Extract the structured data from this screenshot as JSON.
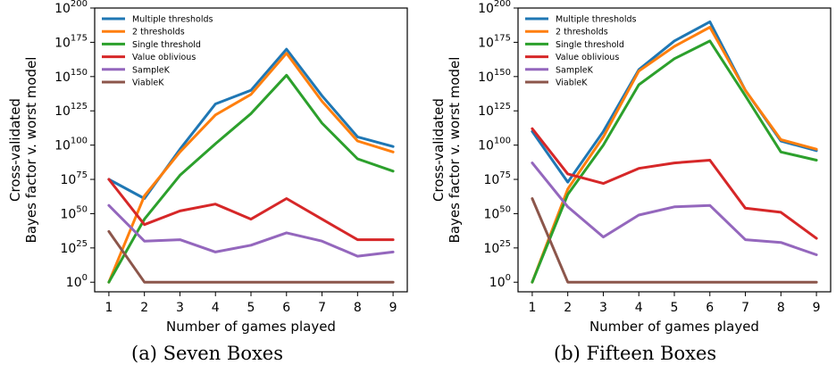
{
  "figure": {
    "series_colors": {
      "Multiple thresholds": "#1f77b4",
      "2 thresholds": "#ff7f0e",
      "Single threshold": "#2ca02c",
      "Value oblivious": "#d62728",
      "SampleK": "#9467bd",
      "ViableK": "#8c564b"
    }
  },
  "chart_data": [
    {
      "type": "line",
      "caption": "(a) Seven Boxes",
      "xlabel": "Number of games played",
      "ylabel_lines": [
        "Cross-validated",
        "Bayes factor v. worst model"
      ],
      "x": [
        1,
        2,
        3,
        4,
        5,
        6,
        7,
        8,
        9
      ],
      "xlim": [
        0.6,
        9.4
      ],
      "y_scale": "log10",
      "ylim_exponent": [
        -7,
        200
      ],
      "y_ticks": [
        {
          "base": "10",
          "exp": "0",
          "value_exp": 0
        },
        {
          "base": "10",
          "exp": "25",
          "value_exp": 25
        },
        {
          "base": "10",
          "exp": "50",
          "value_exp": 50
        },
        {
          "base": "10",
          "exp": "75",
          "value_exp": 75
        },
        {
          "base": "10",
          "exp": "100",
          "value_exp": 100
        },
        {
          "base": "10",
          "exp": "125",
          "value_exp": 125
        },
        {
          "base": "10",
          "exp": "150",
          "value_exp": 150
        },
        {
          "base": "10",
          "exp": "175",
          "value_exp": 175
        },
        {
          "base": "10",
          "exp": "200",
          "value_exp": 200
        }
      ],
      "legend_position": "top-left",
      "grid": false,
      "series_log10_values": [
        {
          "name": "Multiple thresholds",
          "values": [
            75,
            61,
            97,
            130,
            140,
            170,
            136,
            106,
            99
          ]
        },
        {
          "name": "2 thresholds",
          "values": [
            0,
            63,
            95,
            122,
            137,
            167,
            132,
            103,
            95
          ]
        },
        {
          "name": "Single threshold",
          "values": [
            0,
            46,
            78,
            101,
            123,
            151,
            116,
            90,
            81
          ]
        },
        {
          "name": "Value oblivious",
          "values": [
            75,
            42,
            52,
            57,
            46,
            61,
            46,
            31,
            31
          ]
        },
        {
          "name": "SampleK",
          "values": [
            56,
            30,
            31,
            22,
            27,
            36,
            30,
            19,
            22
          ]
        },
        {
          "name": "ViableK",
          "values": [
            37,
            0,
            0,
            0,
            0,
            0,
            0,
            0,
            0
          ]
        }
      ]
    },
    {
      "type": "line",
      "caption": "(b) Fifteen Boxes",
      "xlabel": "Number of games played",
      "ylabel_lines": [
        "Cross-validated",
        "Bayes factor v. worst model"
      ],
      "x": [
        1,
        2,
        3,
        4,
        5,
        6,
        7,
        8,
        9
      ],
      "xlim": [
        0.6,
        9.4
      ],
      "y_scale": "log10",
      "ylim_exponent": [
        -7,
        200
      ],
      "y_ticks": [
        {
          "base": "10",
          "exp": "0",
          "value_exp": 0
        },
        {
          "base": "10",
          "exp": "25",
          "value_exp": 25
        },
        {
          "base": "10",
          "exp": "50",
          "value_exp": 50
        },
        {
          "base": "10",
          "exp": "75",
          "value_exp": 75
        },
        {
          "base": "10",
          "exp": "100",
          "value_exp": 100
        },
        {
          "base": "10",
          "exp": "125",
          "value_exp": 125
        },
        {
          "base": "10",
          "exp": "150",
          "value_exp": 150
        },
        {
          "base": "10",
          "exp": "175",
          "value_exp": 175
        },
        {
          "base": "10",
          "exp": "200",
          "value_exp": 200
        }
      ],
      "legend_position": "top-left",
      "grid": false,
      "series_log10_values": [
        {
          "name": "Multiple thresholds",
          "values": [
            110,
            73,
            110,
            155,
            176,
            190,
            140,
            103,
            96
          ]
        },
        {
          "name": "2 thresholds",
          "values": [
            0,
            68,
            106,
            154,
            172,
            186,
            140,
            104,
            97
          ]
        },
        {
          "name": "Single threshold",
          "values": [
            0,
            64,
            100,
            144,
            163,
            176,
            136,
            95,
            89
          ]
        },
        {
          "name": "Value oblivious",
          "values": [
            112,
            79,
            72,
            83,
            87,
            89,
            54,
            51,
            32
          ]
        },
        {
          "name": "SampleK",
          "values": [
            87,
            55,
            33,
            49,
            55,
            56,
            31,
            29,
            20
          ]
        },
        {
          "name": "ViableK",
          "values": [
            61,
            0,
            0,
            0,
            0,
            0,
            0,
            0,
            0
          ]
        }
      ]
    }
  ]
}
